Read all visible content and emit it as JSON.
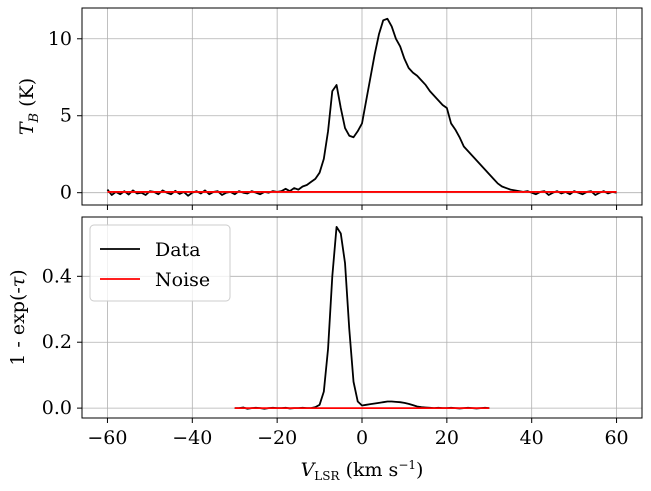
{
  "chart_data": [
    {
      "type": "line",
      "ylabel": "T_B (K)",
      "xlim": [
        -66,
        66
      ],
      "ylim": [
        -0.8,
        12.0
      ],
      "xticks": [
        -60,
        -40,
        -20,
        0,
        20,
        40,
        60
      ],
      "yticks": [
        0,
        5,
        10
      ],
      "ytick_labels": [
        "0",
        "5",
        "10"
      ],
      "show_xtick_labels": false,
      "grid": true,
      "series": [
        {
          "name": "Data",
          "color": "#000000",
          "x": [
            -60,
            -59,
            -58,
            -57,
            -56,
            -55,
            -54,
            -53,
            -52,
            -51,
            -50,
            -49,
            -48,
            -47,
            -46,
            -45,
            -44,
            -43,
            -42,
            -41,
            -40,
            -39,
            -38,
            -37,
            -36,
            -35,
            -34,
            -33,
            -32,
            -31,
            -30,
            -29,
            -28,
            -27,
            -26,
            -25,
            -24,
            -23,
            -22,
            -21,
            -20,
            -19,
            -18,
            -17,
            -16,
            -15,
            -14,
            -13,
            -12,
            -11,
            -10,
            -9,
            -8,
            -7,
            -6,
            -5,
            -4,
            -3,
            -2,
            -1,
            0,
            1,
            2,
            3,
            4,
            5,
            6,
            7,
            8,
            9,
            10,
            11,
            12,
            13,
            14,
            15,
            16,
            17,
            18,
            19,
            20,
            21,
            22,
            23,
            24,
            25,
            26,
            27,
            28,
            29,
            30,
            31,
            32,
            33,
            34,
            35,
            36,
            37,
            38,
            39,
            40,
            41,
            42,
            43,
            44,
            45,
            46,
            47,
            48,
            49,
            50,
            51,
            52,
            53,
            54,
            55,
            56,
            57,
            58,
            59,
            60
          ],
          "values": [
            0.2,
            -0.15,
            0.05,
            -0.1,
            0.1,
            -0.12,
            0.15,
            -0.05,
            0.0,
            -0.15,
            0.1,
            0.05,
            -0.1,
            0.15,
            0.0,
            -0.1,
            0.12,
            -0.08,
            0.05,
            -0.2,
            0.0,
            0.1,
            -0.05,
            0.15,
            -0.1,
            0.05,
            0.1,
            -0.15,
            0.0,
            0.05,
            -0.1,
            0.1,
            0.0,
            -0.05,
            0.1,
            0.0,
            -0.1,
            0.05,
            0.0,
            0.1,
            0.05,
            0.1,
            0.25,
            0.1,
            0.3,
            0.2,
            0.4,
            0.5,
            0.7,
            0.9,
            1.3,
            2.2,
            4.0,
            6.6,
            7.0,
            5.5,
            4.2,
            3.7,
            3.6,
            4.0,
            4.5,
            6.0,
            7.5,
            9.0,
            10.3,
            11.2,
            11.3,
            10.8,
            10.0,
            9.5,
            8.7,
            8.1,
            7.8,
            7.6,
            7.3,
            7.0,
            6.6,
            6.3,
            6.0,
            5.7,
            5.5,
            4.5,
            4.1,
            3.6,
            3.0,
            2.7,
            2.4,
            2.1,
            1.8,
            1.5,
            1.2,
            0.9,
            0.6,
            0.4,
            0.3,
            0.2,
            0.15,
            0.1,
            0.05,
            0.1,
            0.0,
            -0.1,
            0.05,
            0.1,
            -0.15,
            0.0,
            0.1,
            -0.05,
            0.05,
            -0.1,
            0.1,
            0.0,
            -0.1,
            0.05,
            0.1,
            -0.15,
            0.0,
            0.1,
            -0.05,
            0.05,
            0.0
          ]
        },
        {
          "name": "Noise",
          "color": "#ff0000",
          "x": [
            -60,
            60
          ],
          "values": [
            0.05,
            0.05
          ]
        }
      ]
    },
    {
      "type": "line",
      "xlabel": "V_LSR (km s^-1)",
      "ylabel": "1 - exp(-τ)",
      "xlim": [
        -66,
        66
      ],
      "ylim": [
        -0.03,
        0.58
      ],
      "xticks": [
        -60,
        -40,
        -20,
        0,
        20,
        40,
        60
      ],
      "xtick_labels": [
        "−60",
        "−40",
        "−20",
        "0",
        "20",
        "40",
        "60"
      ],
      "yticks": [
        0.0,
        0.2,
        0.4
      ],
      "ytick_labels": [
        "0.0",
        "0.2",
        "0.4"
      ],
      "grid": true,
      "legend": {
        "placement": "upper-left",
        "entries": [
          "Data",
          "Noise"
        ]
      },
      "series": [
        {
          "name": "Data",
          "color": "#000000",
          "x": [
            -30,
            -29,
            -28,
            -27,
            -26,
            -25,
            -24,
            -23,
            -22,
            -21,
            -20,
            -19,
            -18,
            -17,
            -16,
            -15,
            -14,
            -13,
            -12,
            -11,
            -10,
            -9,
            -8,
            -7,
            -6,
            -5,
            -4,
            -3,
            -2,
            -1,
            0,
            1,
            2,
            3,
            4,
            5,
            6,
            7,
            8,
            9,
            10,
            11,
            12,
            13,
            14,
            15,
            16,
            17,
            18,
            19,
            20,
            21,
            22,
            23,
            24,
            25,
            26,
            27,
            28,
            29,
            30
          ],
          "values": [
            0.0,
            0.0,
            0.002,
            -0.002,
            0.0,
            0.001,
            0.0,
            -0.002,
            0.0,
            0.001,
            0.0,
            0.0,
            0.001,
            -0.001,
            0.0,
            0.0,
            0.001,
            0.0,
            0.0,
            0.003,
            0.01,
            0.05,
            0.18,
            0.4,
            0.55,
            0.53,
            0.44,
            0.24,
            0.08,
            0.02,
            0.008,
            0.01,
            0.012,
            0.014,
            0.016,
            0.018,
            0.02,
            0.02,
            0.019,
            0.018,
            0.016,
            0.013,
            0.009,
            0.005,
            0.003,
            0.002,
            0.001,
            0.0,
            0.001,
            0.0,
            0.0,
            0.001,
            0.0,
            -0.001,
            0.0,
            0.001,
            0.0,
            -0.001,
            0.0,
            0.001,
            0.0
          ]
        },
        {
          "name": "Noise",
          "color": "#ff0000",
          "x": [
            -30,
            30
          ],
          "values": [
            0.0,
            0.0
          ]
        }
      ]
    }
  ]
}
